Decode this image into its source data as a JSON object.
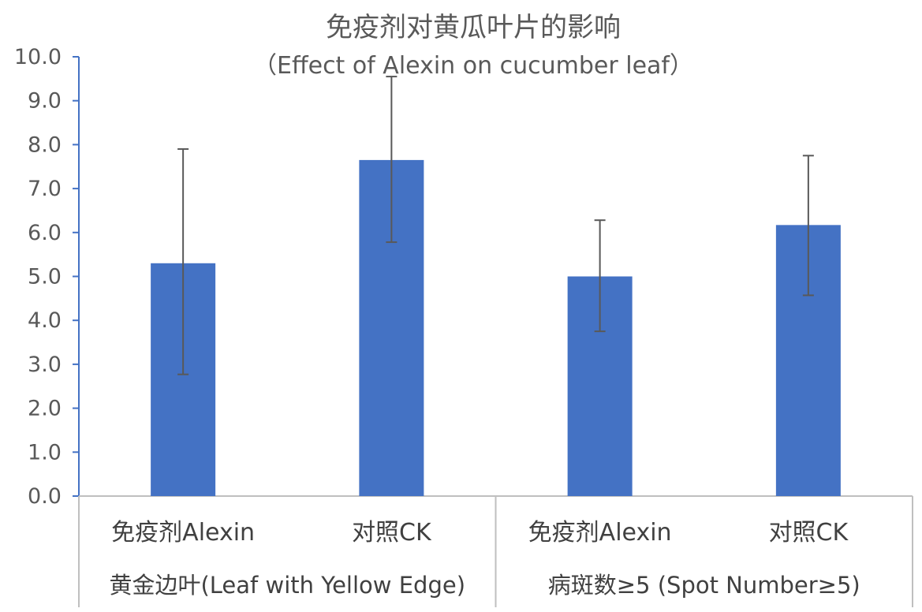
{
  "chart_data": {
    "type": "bar",
    "title": "免疫剂对黄瓜叶片的影响",
    "subtitle": "（Effect of Alexin on cucumber leaf）",
    "xlabel": "",
    "ylabel": "",
    "ylim": [
      0,
      10
    ],
    "yticks": [
      "0.0",
      "1.0",
      "2.0",
      "3.0",
      "4.0",
      "5.0",
      "6.0",
      "7.0",
      "8.0",
      "9.0",
      "10.0"
    ],
    "grid": false,
    "legend": "none",
    "bar_color": "#4472C4",
    "error_bar_color": "#595959",
    "categories": [
      "免疫剂Alexin",
      "对照CK",
      "免疫剂Alexin",
      "对照CK"
    ],
    "groups": [
      {
        "label": "黄金边叶(Leaf with Yellow Edge)",
        "span": [
          0,
          1
        ]
      },
      {
        "label": "病斑数≥5 (Spot Number≥5)",
        "span": [
          2,
          3
        ]
      }
    ],
    "values": [
      5.3,
      7.65,
      5.0,
      6.17
    ],
    "error_low": [
      2.77,
      5.78,
      3.75,
      4.57
    ],
    "error_high": [
      7.9,
      9.55,
      6.28,
      7.75
    ]
  }
}
